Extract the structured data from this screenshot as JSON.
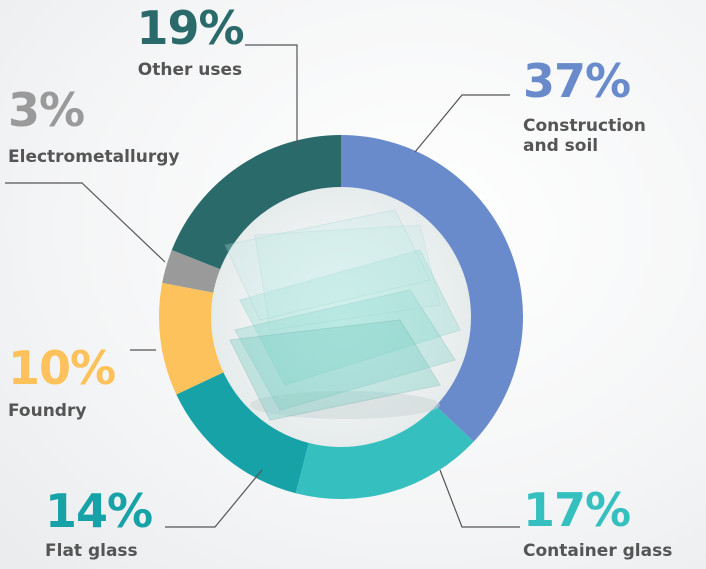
{
  "chart_data": {
    "type": "pie",
    "categories": [
      "Construction and soil",
      "Container glass",
      "Flat glass",
      "Foundry",
      "Electrometallurgy",
      "Other uses"
    ],
    "values": [
      37,
      17,
      14,
      10,
      3,
      19
    ],
    "value_labels": [
      "37%",
      "17%",
      "14%",
      "10%",
      "3%",
      "19%"
    ],
    "colors": [
      "#6a8bcb",
      "#35c0bf",
      "#17a2a8",
      "#fdc25b",
      "#9a9a9a",
      "#2b6a6b"
    ]
  }
}
